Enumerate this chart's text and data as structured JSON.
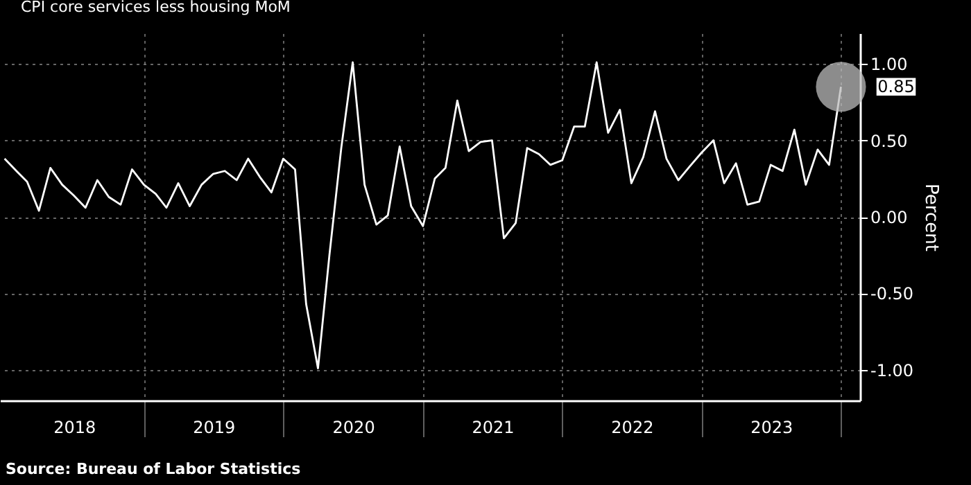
{
  "chart_data": {
    "type": "line",
    "x": [
      "2018-01",
      "2018-02",
      "2018-03",
      "2018-04",
      "2018-05",
      "2018-06",
      "2018-07",
      "2018-08",
      "2018-09",
      "2018-10",
      "2018-11",
      "2018-12",
      "2019-01",
      "2019-02",
      "2019-03",
      "2019-04",
      "2019-05",
      "2019-06",
      "2019-07",
      "2019-08",
      "2019-09",
      "2019-10",
      "2019-11",
      "2019-12",
      "2020-01",
      "2020-02",
      "2020-03",
      "2020-04",
      "2020-05",
      "2020-06",
      "2020-07",
      "2020-08",
      "2020-09",
      "2020-10",
      "2020-11",
      "2020-12",
      "2021-01",
      "2021-02",
      "2021-03",
      "2021-04",
      "2021-05",
      "2021-06",
      "2021-07",
      "2021-08",
      "2021-09",
      "2021-10",
      "2021-11",
      "2021-12",
      "2022-01",
      "2022-02",
      "2022-03",
      "2022-04",
      "2022-05",
      "2022-06",
      "2022-07",
      "2022-08",
      "2022-09",
      "2022-10",
      "2022-11",
      "2022-12",
      "2023-01",
      "2023-02",
      "2023-03",
      "2023-04",
      "2023-05",
      "2023-06",
      "2023-07",
      "2023-08",
      "2023-09",
      "2023-10",
      "2023-11",
      "2023-12",
      "2024-01"
    ],
    "series": [
      {
        "name": "CPI core services less housing MoM",
        "color": "#ffffff",
        "values": [
          0.38,
          0.3,
          0.23,
          0.04,
          0.32,
          0.21,
          0.14,
          0.06,
          0.24,
          0.13,
          0.08,
          0.31,
          0.21,
          0.15,
          0.06,
          0.22,
          0.07,
          0.21,
          0.28,
          0.3,
          0.24,
          0.38,
          0.26,
          0.16,
          0.38,
          0.31,
          -0.57,
          -0.99,
          -0.25,
          0.45,
          1.01,
          0.21,
          -0.05,
          0.01,
          0.46,
          0.07,
          -0.06,
          0.25,
          0.32,
          0.76,
          0.43,
          0.49,
          0.5,
          -0.14,
          -0.04,
          0.45,
          0.41,
          0.34,
          0.37,
          0.59,
          0.59,
          1.01,
          0.55,
          0.7,
          0.22,
          0.39,
          0.69,
          0.38,
          0.24,
          0.33,
          0.42,
          0.5,
          0.22,
          0.35,
          0.08,
          0.1,
          0.34,
          0.3,
          0.57,
          0.21,
          0.44,
          0.34,
          0.85
        ]
      }
    ],
    "ylabel": "Percent",
    "xlim": [
      "2017-12-20",
      "2024-02-20"
    ],
    "xticks": [
      {
        "value": "2018-07-02",
        "label": "2018"
      },
      {
        "value": "2019-01-01",
        "label": null
      },
      {
        "value": "2019-07-02",
        "label": "2019"
      },
      {
        "value": "2020-01-01",
        "label": null
      },
      {
        "value": "2020-07-02",
        "label": "2020"
      },
      {
        "value": "2021-01-01",
        "label": null
      },
      {
        "value": "2021-07-02",
        "label": "2021"
      },
      {
        "value": "2022-01-01",
        "label": null
      },
      {
        "value": "2022-07-02",
        "label": "2022"
      },
      {
        "value": "2023-01-01",
        "label": null
      },
      {
        "value": "2023-07-02",
        "label": "2023"
      },
      {
        "value": "2024-01-01",
        "label": null
      }
    ],
    "ylim": [
      -1.2,
      1.2
    ],
    "yticks": [
      {
        "value": -1,
        "label": "-1.00"
      },
      {
        "value": -0.5,
        "label": "-0.50"
      },
      {
        "value": 0,
        "label": "0.00"
      },
      {
        "value": 0.5,
        "label": "0.50"
      },
      {
        "value": 1,
        "label": "1.00"
      }
    ],
    "grid": true,
    "legend": "top left",
    "annotations": [
      {
        "text": "0.85",
        "x": "2024-01",
        "y": 0.85
      },
      "Source: Bureau of Labor Statistics"
    ]
  }
}
